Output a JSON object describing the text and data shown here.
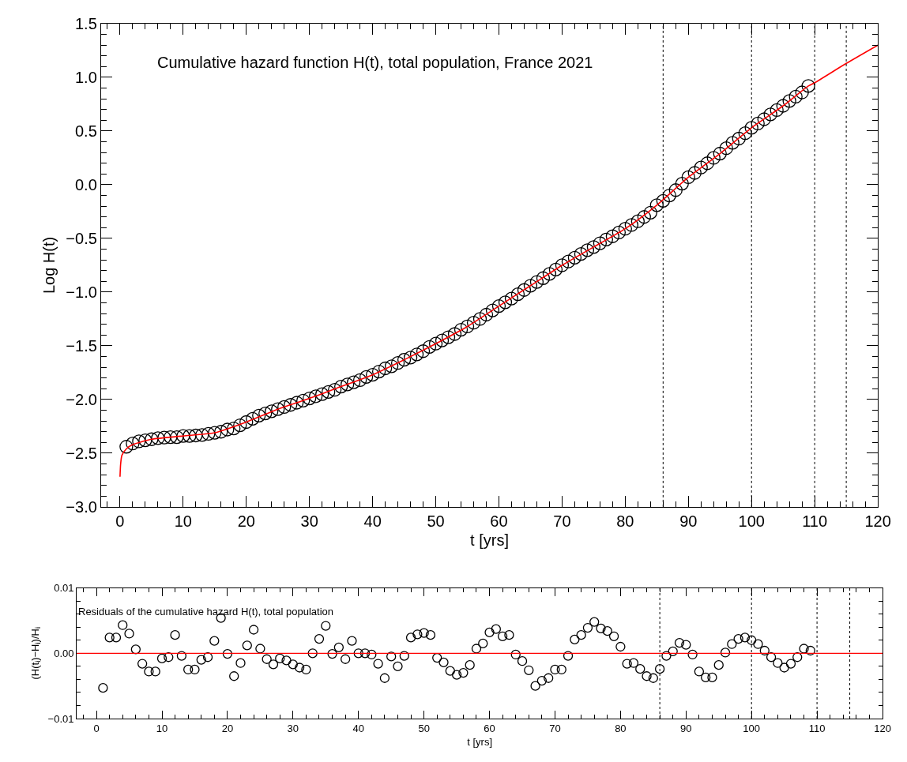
{
  "chart_data": [
    {
      "type": "scatter",
      "xlabel": "t [yrs]",
      "ylabel": "Log H(t)",
      "annotations": [
        "Cumulative hazard function H(t), total population, France 2021"
      ],
      "x": [
        1,
        2,
        3,
        4,
        5,
        6,
        7,
        8,
        9,
        10,
        11,
        12,
        13,
        14,
        15,
        16,
        17,
        18,
        19,
        20,
        21,
        22,
        23,
        24,
        25,
        26,
        27,
        28,
        29,
        30,
        31,
        32,
        33,
        34,
        35,
        36,
        37,
        38,
        39,
        40,
        41,
        42,
        43,
        44,
        45,
        46,
        47,
        48,
        49,
        50,
        51,
        52,
        53,
        54,
        55,
        56,
        57,
        58,
        59,
        60,
        61,
        62,
        63,
        64,
        65,
        66,
        67,
        68,
        69,
        70,
        71,
        72,
        73,
        74,
        75,
        76,
        77,
        78,
        79,
        80,
        81,
        82,
        83,
        84,
        85,
        86,
        87,
        88,
        89,
        90,
        91,
        92,
        93,
        94,
        95,
        96,
        97,
        98,
        99,
        100,
        101,
        102,
        103,
        104,
        105,
        106,
        107,
        108,
        109
      ],
      "series": [
        {
          "color": "#000000",
          "marker": "circle",
          "values": [
            -2.44,
            -2.41,
            -2.39,
            -2.38,
            -2.37,
            -2.36,
            -2.355,
            -2.35,
            -2.35,
            -2.34,
            -2.34,
            -2.335,
            -2.33,
            -2.32,
            -2.31,
            -2.3,
            -2.28,
            -2.27,
            -2.24,
            -2.21,
            -2.18,
            -2.15,
            -2.13,
            -2.11,
            -2.09,
            -2.07,
            -2.05,
            -2.03,
            -2.01,
            -1.99,
            -1.97,
            -1.95,
            -1.93,
            -1.91,
            -1.88,
            -1.86,
            -1.84,
            -1.82,
            -1.79,
            -1.77,
            -1.74,
            -1.71,
            -1.69,
            -1.66,
            -1.63,
            -1.61,
            -1.58,
            -1.55,
            -1.51,
            -1.48,
            -1.45,
            -1.42,
            -1.39,
            -1.35,
            -1.32,
            -1.285,
            -1.25,
            -1.21,
            -1.17,
            -1.13,
            -1.095,
            -1.06,
            -1.02,
            -0.98,
            -0.94,
            -0.905,
            -0.87,
            -0.83,
            -0.79,
            -0.75,
            -0.715,
            -0.68,
            -0.645,
            -0.61,
            -0.58,
            -0.545,
            -0.51,
            -0.48,
            -0.445,
            -0.41,
            -0.375,
            -0.34,
            -0.3,
            -0.26,
            -0.19,
            -0.15,
            -0.1,
            -0.05,
            0.01,
            0.07,
            0.11,
            0.16,
            0.2,
            0.25,
            0.29,
            0.34,
            0.39,
            0.43,
            0.48,
            0.53,
            0.57,
            0.61,
            0.655,
            0.695,
            0.735,
            0.78,
            0.82,
            0.86,
            0.92
          ]
        },
        {
          "type": "line",
          "color": "#ff0000",
          "line_style": "solid",
          "x": [
            0,
            0.1,
            0.3,
            1,
            2,
            5,
            10,
            15,
            20,
            25,
            30,
            35,
            40,
            45,
            50,
            55,
            60,
            65,
            70,
            75,
            80,
            85,
            90,
            95,
            100,
            105,
            109,
            110,
            115,
            120
          ],
          "values": [
            -2.72,
            -2.6,
            -2.52,
            -2.46,
            -2.42,
            -2.37,
            -2.34,
            -2.31,
            -2.21,
            -2.09,
            -1.99,
            -1.88,
            -1.77,
            -1.63,
            -1.48,
            -1.32,
            -1.13,
            -0.94,
            -0.75,
            -0.58,
            -0.41,
            -0.19,
            0.07,
            0.29,
            0.53,
            0.735,
            0.92,
            0.95,
            1.13,
            1.3
          ]
        }
      ],
      "xlim": [
        -3,
        120
      ],
      "ylim": [
        -3,
        1.5
      ],
      "xticks": [
        0,
        10,
        20,
        30,
        40,
        50,
        60,
        70,
        80,
        90,
        100,
        110,
        120
      ],
      "yticks": [
        {
          "value": -3,
          "label": "−3.0"
        },
        {
          "value": -2.5,
          "label": "−2.5"
        },
        {
          "value": -2,
          "label": "−2.0"
        },
        {
          "value": -1.5,
          "label": "−1.5"
        },
        {
          "value": -1,
          "label": "−1.0"
        },
        {
          "value": -0.5,
          "label": "−0.5"
        },
        {
          "value": 0,
          "label": "0.0"
        },
        {
          "value": 0.5,
          "label": "0.5"
        },
        {
          "value": 1,
          "label": "1.0"
        },
        {
          "value": 1.5,
          "label": "1.5"
        }
      ],
      "ref_lines": [
        {
          "axis": "x",
          "value": 86,
          "color": "#000000",
          "line_style": "dotted"
        },
        {
          "axis": "x",
          "value": 100,
          "color": "#000000",
          "line_style": "dotted"
        },
        {
          "axis": "x",
          "value": 110,
          "color": "#000000",
          "line_style": "dotted"
        },
        {
          "axis": "x",
          "value": 115,
          "color": "#000000",
          "line_style": "dotted"
        }
      ]
    },
    {
      "type": "scatter",
      "xlabel": "t [yrs]",
      "ylabel": "(H(t$_{i}$)−H$_{i}$)/H$_{i}$",
      "annotations": [
        "Residuals of the cumulative hazard H(t), total population"
      ],
      "x": [
        1,
        2,
        3,
        4,
        5,
        6,
        7,
        8,
        9,
        10,
        11,
        12,
        13,
        14,
        15,
        16,
        17,
        18,
        19,
        20,
        21,
        22,
        23,
        24,
        25,
        26,
        27,
        28,
        29,
        30,
        31,
        32,
        33,
        34,
        35,
        36,
        37,
        38,
        39,
        40,
        41,
        42,
        43,
        44,
        45,
        46,
        47,
        48,
        49,
        50,
        51,
        52,
        53,
        54,
        55,
        56,
        57,
        58,
        59,
        60,
        61,
        62,
        63,
        64,
        65,
        66,
        67,
        68,
        69,
        70,
        71,
        72,
        73,
        74,
        75,
        76,
        77,
        78,
        79,
        80,
        81,
        82,
        83,
        84,
        85,
        86,
        87,
        88,
        89,
        90,
        91,
        92,
        93,
        94,
        95,
        96,
        97,
        98,
        99,
        100,
        101,
        102,
        103,
        104,
        105,
        106,
        107,
        108,
        109
      ],
      "series": [
        {
          "color": "#000000",
          "marker": "circle",
          "values": [
            -0.0053,
            0.0024,
            0.0024,
            0.0043,
            0.003,
            0.0006,
            -0.0016,
            -0.0028,
            -0.0028,
            -0.0008,
            -0.0006,
            0.0028,
            -0.0004,
            -0.0025,
            -0.0025,
            -0.001,
            -0.0006,
            0.0019,
            0.0054,
            -0.0001,
            -0.0035,
            -0.0015,
            0.0012,
            0.0036,
            0.0007,
            -0.0009,
            -0.0017,
            -0.0008,
            -0.0011,
            -0.0017,
            -0.0022,
            -0.0025,
            0.0,
            0.0022,
            0.0042,
            -0.0001,
            0.0009,
            -0.0009,
            0.0019,
            0.0,
            0.0,
            -0.0002,
            -0.0016,
            -0.0038,
            -0.0005,
            -0.002,
            -0.0004,
            0.0024,
            0.0029,
            0.0031,
            0.0028,
            -0.0007,
            -0.0014,
            -0.0027,
            -0.0033,
            -0.003,
            -0.0018,
            0.0007,
            0.0015,
            0.0032,
            0.0037,
            0.0026,
            0.0028,
            -0.0002,
            -0.0012,
            -0.0026,
            -0.005,
            -0.0042,
            -0.0038,
            -0.0025,
            -0.0025,
            -0.0004,
            0.0021,
            0.0028,
            0.0039,
            0.0048,
            0.0038,
            0.0034,
            0.0026,
            0.001,
            -0.0016,
            -0.0015,
            -0.0024,
            -0.0035,
            -0.0038,
            -0.0024,
            -0.0004,
            0.0003,
            0.0016,
            0.0013,
            -0.0002,
            -0.0028,
            -0.0037,
            -0.0037,
            -0.0018,
            0.0001,
            0.0014,
            0.0022,
            0.0024,
            0.002,
            0.0014,
            0.0004,
            -0.0006,
            -0.0015,
            -0.0022,
            -0.0016,
            -0.0006,
            0.0007,
            0.0004
          ]
        }
      ],
      "xlim": [
        -3,
        120
      ],
      "ylim": [
        -0.01,
        0.01
      ],
      "xticks": [
        0,
        10,
        20,
        30,
        40,
        50,
        60,
        70,
        80,
        90,
        100,
        110,
        120
      ],
      "yticks": [
        {
          "value": -0.01,
          "label": "−0.01"
        },
        {
          "value": 0,
          "label": "0.00"
        },
        {
          "value": 0.01,
          "label": "0.01"
        }
      ],
      "ref_lines": [
        {
          "axis": "y",
          "value": 0,
          "color": "#ff0000",
          "line_style": "solid"
        },
        {
          "axis": "x",
          "value": 86,
          "color": "#000000",
          "line_style": "dotted"
        },
        {
          "axis": "x",
          "value": 100,
          "color": "#000000",
          "line_style": "dotted"
        },
        {
          "axis": "x",
          "value": 110,
          "color": "#000000",
          "line_style": "dotted"
        },
        {
          "axis": "x",
          "value": 115,
          "color": "#000000",
          "line_style": "dotted"
        }
      ]
    }
  ]
}
